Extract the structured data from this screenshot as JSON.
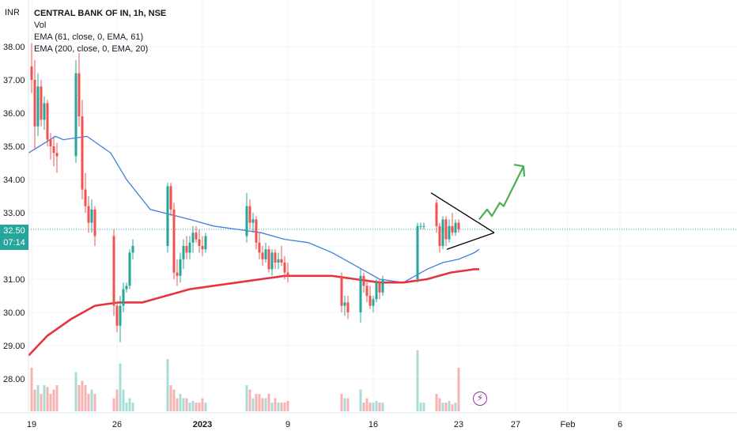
{
  "header": {
    "currency": "INR",
    "symbol_title": "CENTRAL BANK OF IN, 1h, NSE",
    "indicators": [
      "Vol",
      "EMA (61, close, 0, EMA, 61)",
      "EMA (200, close, 0, EMA, 20)"
    ]
  },
  "price_tag": {
    "price": "32.50",
    "countdown": "07:14"
  },
  "colors": {
    "up": "#26a69a",
    "down": "#ef5350",
    "ema61": "#3f7fe0",
    "ema200": "#e8333f",
    "arrow": "#4caf50",
    "pattern": "#000000"
  },
  "icons": {
    "alert": "lightning-icon"
  },
  "chart_data": {
    "type": "candlestick",
    "title": "CENTRAL BANK OF IN, 1h, NSE",
    "y_ticks": [
      "38.00",
      "37.00",
      "36.00",
      "35.00",
      "34.00",
      "33.00",
      "32.00",
      "31.00",
      "30.00",
      "29.00",
      "28.00"
    ],
    "ylim": [
      27.0,
      38.6
    ],
    "x_ticks": [
      "19",
      "26",
      "2023",
      "9",
      "16",
      "23",
      "27",
      "Feb",
      "6"
    ],
    "x_tick_bar_index": [
      0,
      18,
      36,
      54,
      72,
      90,
      102,
      113,
      124
    ],
    "last_price": 32.5,
    "grid": true,
    "candles": [
      [
        37.4,
        38.1,
        36.6,
        37.0
      ],
      [
        37.0,
        37.6,
        34.9,
        35.6
      ],
      [
        35.6,
        37.2,
        35.3,
        36.8
      ],
      [
        36.8,
        37.0,
        35.6,
        35.8
      ],
      [
        35.8,
        36.5,
        35.5,
        36.3
      ],
      [
        36.3,
        36.4,
        35.0,
        35.2
      ],
      [
        35.2,
        35.4,
        34.6,
        35.0
      ],
      [
        35.0,
        35.3,
        34.4,
        34.8
      ],
      [
        34.8,
        35.1,
        34.2,
        34.7
      ],
      [
        34.7,
        37.6,
        34.5,
        37.2
      ],
      [
        37.2,
        37.8,
        35.6,
        35.9
      ],
      [
        35.9,
        36.4,
        33.4,
        33.7
      ],
      [
        33.7,
        34.2,
        33.0,
        33.2
      ],
      [
        33.2,
        33.5,
        32.4,
        32.7
      ],
      [
        32.7,
        33.4,
        32.4,
        33.1
      ],
      [
        33.1,
        33.2,
        32.0,
        32.3
      ],
      [
        32.3,
        32.5,
        29.9,
        30.2
      ],
      [
        30.2,
        30.3,
        29.4,
        29.6
      ],
      [
        29.6,
        30.5,
        29.1,
        30.2
      ],
      [
        30.2,
        30.9,
        30.0,
        30.7
      ],
      [
        30.7,
        30.9,
        30.6,
        30.8
      ],
      [
        30.8,
        31.9,
        30.7,
        31.8
      ],
      [
        31.8,
        32.2,
        31.6,
        32.0
      ],
      [
        32.0,
        33.9,
        31.8,
        33.8
      ],
      [
        33.8,
        33.9,
        32.9,
        33.1
      ],
      [
        33.1,
        33.3,
        31.0,
        31.2
      ],
      [
        31.2,
        31.6,
        30.8,
        31.1
      ],
      [
        31.1,
        31.8,
        30.9,
        31.6
      ],
      [
        31.6,
        32.2,
        31.3,
        32.0
      ],
      [
        32.0,
        32.3,
        31.6,
        31.8
      ],
      [
        31.8,
        32.3,
        31.6,
        32.1
      ],
      [
        32.1,
        32.6,
        31.8,
        32.4
      ],
      [
        32.4,
        32.6,
        32.1,
        32.2
      ],
      [
        32.2,
        32.5,
        31.8,
        32.0
      ],
      [
        32.0,
        32.3,
        31.7,
        31.9
      ],
      [
        31.9,
        32.4,
        31.8,
        32.3
      ],
      [
        32.3,
        33.6,
        32.1,
        33.2
      ],
      [
        33.2,
        33.4,
        32.5,
        32.7
      ],
      [
        32.7,
        33.0,
        32.4,
        32.8
      ],
      [
        32.8,
        32.9,
        31.9,
        32.1
      ],
      [
        32.1,
        32.4,
        31.6,
        31.8
      ],
      [
        31.8,
        32.0,
        31.4,
        31.6
      ],
      [
        31.6,
        32.1,
        31.5,
        31.9
      ],
      [
        31.9,
        32.0,
        31.2,
        31.3
      ],
      [
        31.3,
        31.9,
        31.1,
        31.8
      ],
      [
        31.8,
        31.9,
        31.3,
        31.5
      ],
      [
        31.5,
        31.8,
        31.3,
        31.6
      ],
      [
        31.6,
        32.0,
        31.4,
        31.5
      ],
      [
        31.5,
        31.7,
        31.0,
        31.2
      ],
      [
        31.2,
        31.5,
        30.9,
        31.1
      ],
      [
        31.1,
        31.2,
        30.0,
        30.2
      ],
      [
        30.2,
        30.5,
        29.9,
        30.3
      ],
      [
        30.3,
        30.5,
        29.8,
        30.0
      ],
      [
        30.0,
        31.3,
        29.7,
        31.1
      ],
      [
        31.1,
        31.2,
        30.6,
        30.8
      ],
      [
        30.8,
        31.0,
        30.3,
        30.5
      ],
      [
        30.5,
        30.8,
        30.1,
        30.2
      ],
      [
        30.2,
        30.5,
        30.0,
        30.4
      ],
      [
        30.4,
        31.0,
        30.3,
        30.9
      ],
      [
        30.9,
        31.0,
        30.4,
        30.6
      ],
      [
        30.6,
        31.1,
        30.5,
        31.0
      ],
      [
        31.0,
        32.7,
        30.9,
        32.6
      ],
      [
        32.6,
        32.7,
        32.5,
        32.6
      ],
      [
        32.6,
        32.7,
        32.5,
        32.6
      ],
      [
        33.3,
        33.4,
        32.4,
        32.6
      ],
      [
        32.6,
        32.7,
        31.8,
        32.0
      ],
      [
        32.0,
        32.9,
        31.9,
        32.8
      ],
      [
        32.8,
        32.9,
        32.0,
        32.2
      ],
      [
        32.2,
        32.8,
        32.1,
        32.6
      ],
      [
        32.6,
        33.0,
        32.3,
        32.4
      ],
      [
        32.4,
        32.8,
        32.3,
        32.7
      ],
      [
        32.7,
        32.8,
        32.4,
        32.5
      ]
    ],
    "candle_x": [
      40,
      44,
      48,
      52,
      56,
      60,
      64,
      68,
      72,
      96,
      100,
      104,
      108,
      112,
      116,
      120,
      144,
      148,
      152,
      156,
      160,
      164,
      168,
      212,
      216,
      220,
      224,
      228,
      232,
      236,
      240,
      244,
      248,
      252,
      256,
      260,
      312,
      316,
      320,
      324,
      328,
      332,
      336,
      340,
      344,
      348,
      352,
      356,
      360,
      364,
      432,
      436,
      440,
      456,
      460,
      464,
      468,
      472,
      476,
      480,
      484,
      528,
      532,
      536,
      552,
      556,
      560,
      564,
      568,
      572,
      576,
      580
    ],
    "volumes": [
      0.5,
      0.25,
      0.3,
      0.2,
      0.3,
      0.28,
      0.2,
      0.25,
      0.3,
      0.45,
      0.3,
      0.35,
      0.3,
      0.2,
      0.25,
      0.2,
      0.15,
      0.25,
      0.55,
      0.25,
      0.1,
      0.15,
      0.1,
      0.6,
      0.3,
      0.25,
      0.15,
      0.2,
      0.15,
      0.15,
      0.1,
      0.12,
      0.1,
      0.1,
      0.15,
      0.1,
      0.3,
      0.25,
      0.15,
      0.2,
      0.2,
      0.15,
      0.15,
      0.2,
      0.1,
      0.15,
      0.1,
      0.1,
      0.1,
      0.12,
      0.2,
      0.15,
      0.15,
      0.25,
      0.1,
      0.15,
      0.1,
      0.1,
      0.12,
      0.1,
      0.1,
      0.7,
      0.1,
      0.1,
      0.2,
      0.15,
      0.1,
      0.1,
      0.12,
      0.08,
      0.1,
      0.5
    ],
    "series": [
      {
        "name": "EMA (61, close, 0, EMA, 61)",
        "x": [
          36,
          70,
          80,
          110,
          140,
          160,
          190,
          240,
          270,
          300,
          330,
          360,
          390,
          420,
          450,
          480,
          510,
          540,
          560,
          580,
          600,
          606
        ],
        "values": [
          34.8,
          35.3,
          35.2,
          35.3,
          34.8,
          34.0,
          33.1,
          32.8,
          32.6,
          32.5,
          32.4,
          32.2,
          32.1,
          31.8,
          31.4,
          31.0,
          30.9,
          31.3,
          31.5,
          31.6,
          31.8,
          31.9
        ]
      },
      {
        "name": "EMA (200, close, 0, EMA, 20)",
        "x": [
          36,
          60,
          90,
          120,
          150,
          180,
          210,
          240,
          270,
          300,
          330,
          360,
          390,
          420,
          450,
          480,
          510,
          540,
          570,
          600,
          606
        ],
        "values": [
          28.7,
          29.3,
          29.8,
          30.2,
          30.3,
          30.3,
          30.5,
          30.7,
          30.8,
          30.9,
          31.0,
          31.1,
          31.1,
          31.1,
          31.0,
          30.9,
          30.9,
          31.0,
          31.2,
          31.3,
          31.3
        ]
      }
    ],
    "annotations": {
      "triangle": {
        "upper": [
          [
            545,
            33.6
          ],
          [
            625,
            32.4
          ]
        ],
        "lower": [
          [
            565,
            31.9
          ],
          [
            625,
            32.4
          ]
        ]
      },
      "forecast_arrow": [
        [
          606,
          32.8
        ],
        [
          616,
          33.1
        ],
        [
          622,
          32.9
        ],
        [
          632,
          33.3
        ],
        [
          637,
          33.2
        ],
        [
          662,
          34.4
        ]
      ]
    }
  }
}
